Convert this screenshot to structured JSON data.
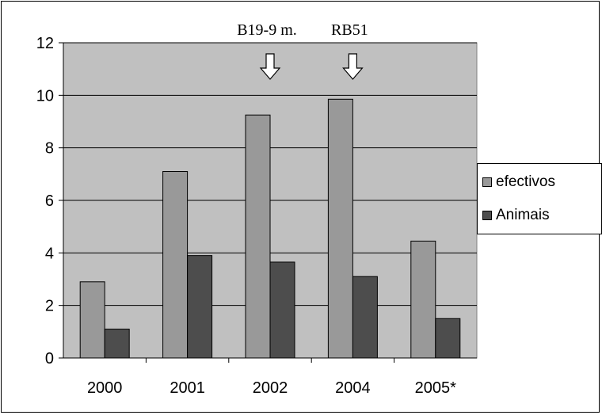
{
  "chart_data": {
    "type": "bar",
    "categories": [
      "2000",
      "2001",
      "2002",
      "2004",
      "2005*"
    ],
    "series": [
      {
        "name": "efectivos",
        "color": "#999999",
        "values": [
          2.9,
          7.1,
          9.25,
          9.85,
          4.45
        ]
      },
      {
        "name": "Animais",
        "color": "#4d4d4d",
        "values": [
          1.1,
          3.9,
          3.65,
          3.1,
          1.5
        ]
      }
    ],
    "ylim": [
      0,
      12
    ],
    "yticks": [
      0,
      2,
      4,
      6,
      8,
      10,
      12
    ],
    "grid": true,
    "plot_background": "#c0c0c0",
    "legend_position": "right",
    "annotations": [
      {
        "label": "B19-9 m.",
        "between": [
          "2001",
          "2002"
        ],
        "marker": "down-arrow-icon"
      },
      {
        "label": "RB51",
        "between": [
          "2002",
          "2004"
        ],
        "marker": "down-arrow-icon"
      }
    ]
  }
}
